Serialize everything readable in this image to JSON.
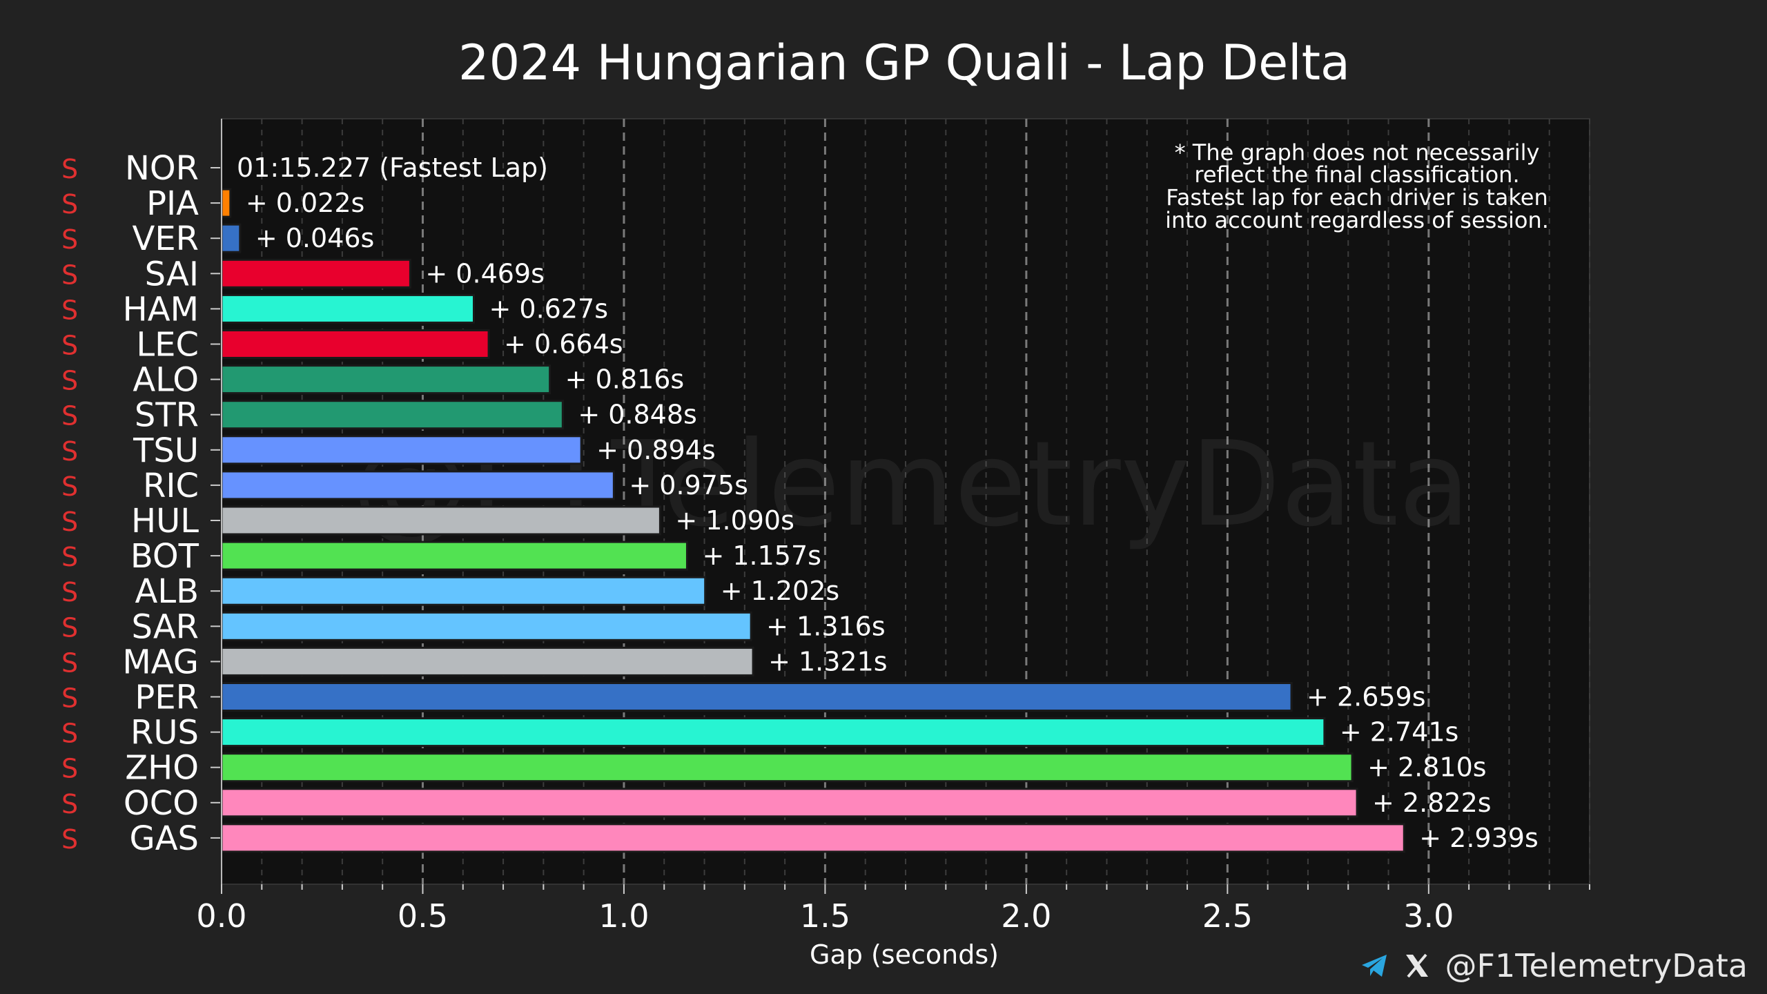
{
  "chart_data": {
    "type": "bar",
    "orientation": "horizontal",
    "title": "2024 Hungarian GP Quali - Lap Delta",
    "xlabel": "Gap (seconds)",
    "ylabel": "",
    "xlim": [
      0,
      3.4
    ],
    "xticks": [
      "0.0",
      "0.5",
      "1.0",
      "1.5",
      "2.0",
      "2.5",
      "3.0"
    ],
    "xtick_values": [
      0,
      0.5,
      1.0,
      1.5,
      2.0,
      2.5,
      3.0
    ],
    "grid": "vertical dashed",
    "note_lines": [
      "* The graph does not necessarily",
      "reflect the final classification.",
      "Fastest lap for each driver is taken",
      "into account regardless of session."
    ],
    "watermark": "@F1TelemetryData",
    "tyre_marker": "S",
    "tyre_color": "#e03030",
    "drivers": [
      {
        "code": "NOR",
        "gap": 0.0,
        "label": "01:15.227 (Fastest Lap)",
        "color": "#ff8000"
      },
      {
        "code": "PIA",
        "gap": 0.022,
        "label": "+ 0.022s",
        "color": "#ff8000"
      },
      {
        "code": "VER",
        "gap": 0.046,
        "label": "+ 0.046s",
        "color": "#3671c6"
      },
      {
        "code": "SAI",
        "gap": 0.469,
        "label": "+ 0.469s",
        "color": "#e8002d"
      },
      {
        "code": "HAM",
        "gap": 0.627,
        "label": "+ 0.627s",
        "color": "#27f4d2"
      },
      {
        "code": "LEC",
        "gap": 0.664,
        "label": "+ 0.664s",
        "color": "#e8002d"
      },
      {
        "code": "ALO",
        "gap": 0.816,
        "label": "+ 0.816s",
        "color": "#229971"
      },
      {
        "code": "STR",
        "gap": 0.848,
        "label": "+ 0.848s",
        "color": "#229971"
      },
      {
        "code": "TSU",
        "gap": 0.894,
        "label": "+ 0.894s",
        "color": "#6692ff"
      },
      {
        "code": "RIC",
        "gap": 0.975,
        "label": "+ 0.975s",
        "color": "#6692ff"
      },
      {
        "code": "HUL",
        "gap": 1.09,
        "label": "+ 1.090s",
        "color": "#b6babd"
      },
      {
        "code": "BOT",
        "gap": 1.157,
        "label": "+ 1.157s",
        "color": "#52e252"
      },
      {
        "code": "ALB",
        "gap": 1.202,
        "label": "+ 1.202s",
        "color": "#64c4ff"
      },
      {
        "code": "SAR",
        "gap": 1.316,
        "label": "+ 1.316s",
        "color": "#64c4ff"
      },
      {
        "code": "MAG",
        "gap": 1.321,
        "label": "+ 1.321s",
        "color": "#b6babd"
      },
      {
        "code": "PER",
        "gap": 2.659,
        "label": "+ 2.659s",
        "color": "#3671c6"
      },
      {
        "code": "RUS",
        "gap": 2.741,
        "label": "+ 2.741s",
        "color": "#27f4d2"
      },
      {
        "code": "ZHO",
        "gap": 2.81,
        "label": "+ 2.810s",
        "color": "#52e252"
      },
      {
        "code": "OCO",
        "gap": 2.822,
        "label": "+ 2.822s",
        "color": "#ff87bc"
      },
      {
        "code": "GAS",
        "gap": 2.939,
        "label": "+ 2.939s",
        "color": "#ff87bc"
      }
    ]
  },
  "footer": {
    "handle": "@F1TelemetryData",
    "icons": [
      "telegram-icon",
      "x-icon"
    ]
  }
}
